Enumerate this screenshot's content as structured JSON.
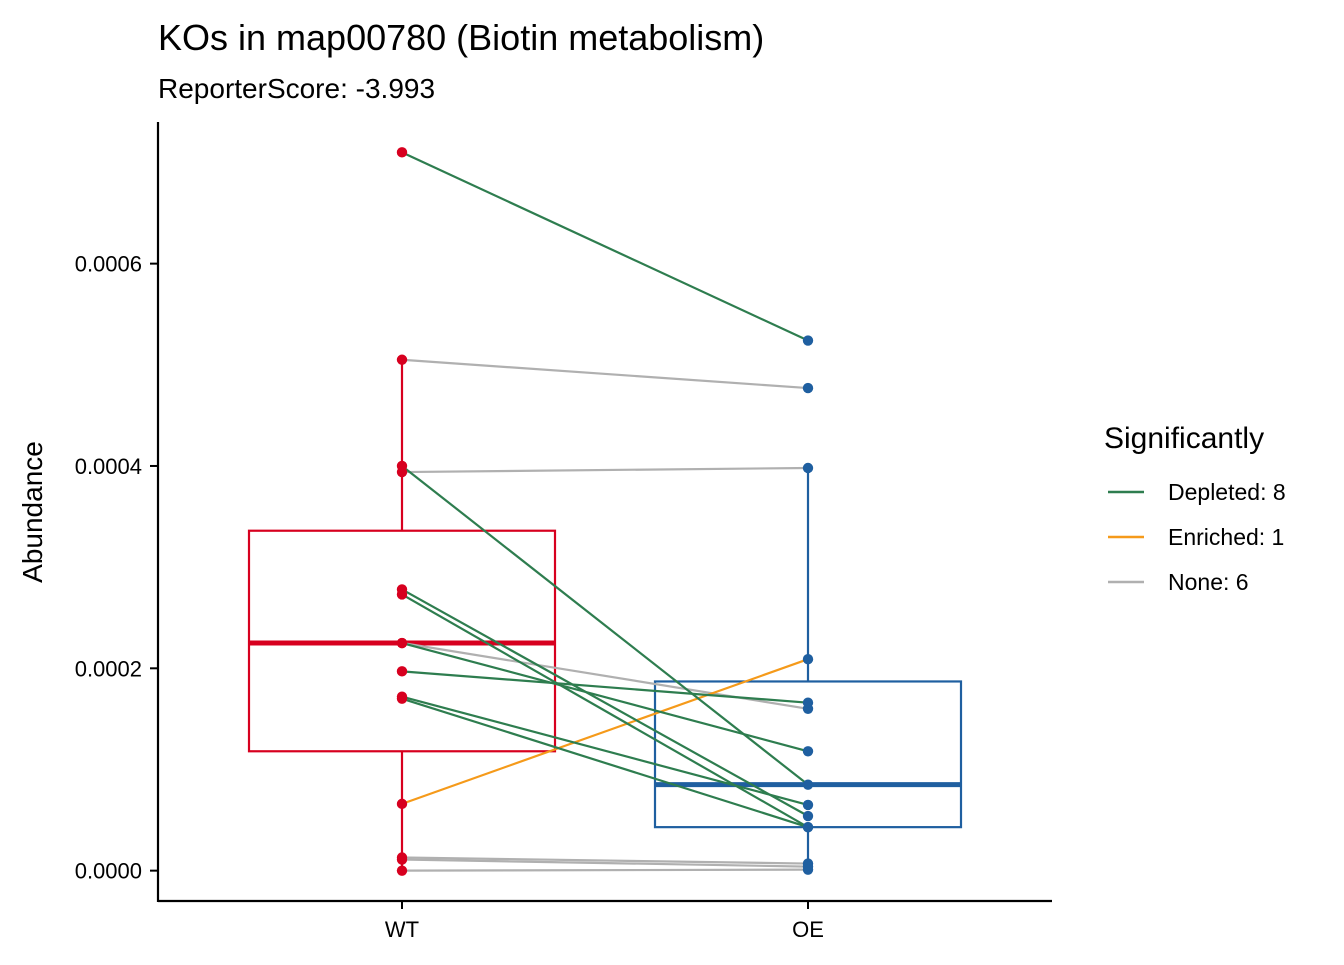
{
  "chart_data": {
    "type": "boxplot-paired",
    "title": "KOs in map00780 (Biotin metabolism)",
    "subtitle": "ReporterScore: -3.993",
    "xlabel": "",
    "ylabel": "Abundance",
    "categories": [
      "WT",
      "OE"
    ],
    "ylim": [
      -3e-05,
      0.00074
    ],
    "y_ticks": [
      0,
      0.0002,
      0.0004,
      0.0006
    ],
    "y_tick_labels": [
      "0.0000",
      "0.0002",
      "0.0004",
      "0.0006"
    ],
    "grid": false,
    "legend": {
      "title": "Significantly",
      "position": "right",
      "entries": [
        {
          "label": "Depleted: 8",
          "color": "#2E7D4F"
        },
        {
          "label": "Enriched: 1",
          "color": "#F59A1A"
        },
        {
          "label": "None: 6",
          "color": "#B0B0B0"
        }
      ]
    },
    "boxes": [
      {
        "group": "WT",
        "color": "#D7001F",
        "q1": 0.000118,
        "median": 0.000225,
        "q3": 0.000336,
        "whisker_low": 0.0,
        "whisker_high": 0.000505
      },
      {
        "group": "OE",
        "color": "#1F5FA0",
        "q1": 4.3e-05,
        "median": 8.5e-05,
        "q3": 0.000187,
        "whisker_low": 0.0,
        "whisker_high": 0.000398
      }
    ],
    "pairs": [
      {
        "wt": 0.00071,
        "oe": 0.000524,
        "status": "Depleted"
      },
      {
        "wt": 0.000505,
        "oe": 0.000477,
        "status": "None"
      },
      {
        "wt": 0.000394,
        "oe": 0.000398,
        "status": "None"
      },
      {
        "wt": 0.0004,
        "oe": 8.5e-05,
        "status": "Depleted"
      },
      {
        "wt": 0.000278,
        "oe": 5.4e-05,
        "status": "Depleted"
      },
      {
        "wt": 0.000273,
        "oe": 4.3e-05,
        "status": "Depleted"
      },
      {
        "wt": 0.000225,
        "oe": 0.00016,
        "status": "None"
      },
      {
        "wt": 0.000225,
        "oe": 0.000118,
        "status": "Depleted"
      },
      {
        "wt": 0.000197,
        "oe": 0.000166,
        "status": "Depleted"
      },
      {
        "wt": 0.000172,
        "oe": 6.5e-05,
        "status": "Depleted"
      },
      {
        "wt": 0.00017,
        "oe": 4.3e-05,
        "status": "Depleted"
      },
      {
        "wt": 6.6e-05,
        "oe": 0.000209,
        "status": "Enriched"
      },
      {
        "wt": 1.3e-05,
        "oe": 7e-06,
        "status": "None"
      },
      {
        "wt": 1.1e-05,
        "oe": 4e-06,
        "status": "None"
      },
      {
        "wt": 0.0,
        "oe": 1e-06,
        "status": "None"
      }
    ]
  },
  "colors": {
    "Depleted": "#2E7D4F",
    "Enriched": "#F59A1A",
    "None": "#B0B0B0",
    "WT": "#D7001F",
    "OE": "#1F5FA0"
  }
}
